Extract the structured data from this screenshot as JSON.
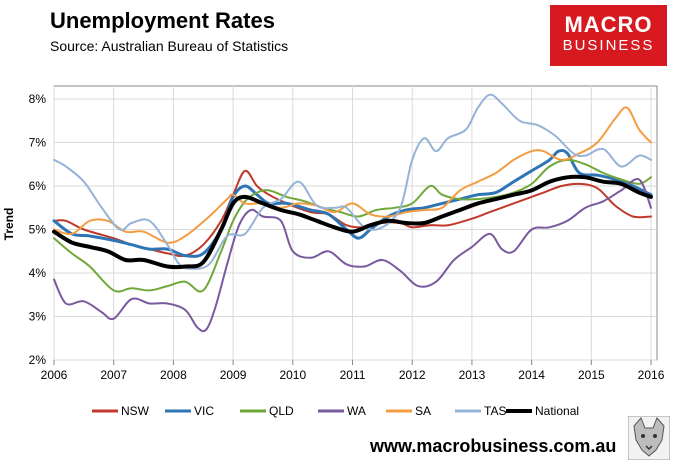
{
  "title": "Unemployment Rates",
  "subtitle": "Source: Australian Bureau of Statistics",
  "logo": {
    "line1": "MACRO",
    "line2": "BUSINESS"
  },
  "footer": {
    "url": "www.macrobusiness.com.au"
  },
  "chart_data": {
    "type": "line",
    "title": "Unemployment Rates",
    "xlabel": "",
    "ylabel": "Trend",
    "xlim": [
      2006,
      2016.1
    ],
    "ylim": [
      2,
      8.3
    ],
    "yticks": [
      2,
      3,
      4,
      5,
      6,
      7,
      8
    ],
    "ytick_labels": [
      "2%",
      "3%",
      "4%",
      "5%",
      "6%",
      "7%",
      "8%"
    ],
    "xticks": [
      2006,
      2007,
      2008,
      2009,
      2010,
      2011,
      2012,
      2013,
      2014,
      2015,
      2016
    ],
    "xtick_labels": [
      "2006",
      "2007",
      "2008",
      "2009",
      "2010",
      "2011",
      "2012",
      "2013",
      "2014",
      "2015",
      "2016"
    ],
    "grid": true,
    "legend_position": "bottom",
    "series": [
      {
        "name": "NSW",
        "color": "#c0392b",
        "width": 2,
        "x": [
          2006,
          2006.2,
          2006.5,
          2007,
          2007.3,
          2007.6,
          2007.9,
          2008.2,
          2008.5,
          2008.8,
          2009,
          2009.2,
          2009.4,
          2009.6,
          2009.9,
          2010.3,
          2010.6,
          2010.9,
          2011.2,
          2011.5,
          2011.8,
          2012,
          2012.3,
          2012.6,
          2013,
          2013.3,
          2013.6,
          2013.9,
          2014.2,
          2014.5,
          2014.8,
          2015.1,
          2015.4,
          2015.7,
          2016
        ],
        "y": [
          5.2,
          5.2,
          5.0,
          4.8,
          4.65,
          4.55,
          4.45,
          4.4,
          4.65,
          5.2,
          5.8,
          6.35,
          6.0,
          5.8,
          5.6,
          5.4,
          5.35,
          5.1,
          5.05,
          5.15,
          5.15,
          5.05,
          5.1,
          5.1,
          5.25,
          5.4,
          5.55,
          5.7,
          5.85,
          6.0,
          6.05,
          5.95,
          5.55,
          5.3,
          5.3
        ]
      },
      {
        "name": "VIC",
        "color": "#2e75b6",
        "width": 3,
        "x": [
          2006,
          2006.3,
          2006.6,
          2007,
          2007.3,
          2007.6,
          2007.9,
          2008.2,
          2008.5,
          2008.8,
          2009,
          2009.2,
          2009.4,
          2009.6,
          2009.9,
          2010.3,
          2010.6,
          2010.9,
          2011.1,
          2011.3,
          2011.6,
          2011.9,
          2012.2,
          2012.5,
          2012.8,
          2013.1,
          2013.4,
          2013.7,
          2014,
          2014.3,
          2014.45,
          2014.6,
          2014.8,
          2015.1,
          2015.4,
          2015.7,
          2016
        ],
        "y": [
          5.2,
          4.9,
          4.85,
          4.75,
          4.65,
          4.55,
          4.55,
          4.4,
          4.45,
          5.0,
          5.75,
          6.0,
          5.8,
          5.6,
          5.6,
          5.45,
          5.35,
          5.0,
          4.8,
          5.0,
          5.3,
          5.45,
          5.5,
          5.6,
          5.7,
          5.8,
          5.85,
          6.1,
          6.35,
          6.6,
          6.8,
          6.75,
          6.3,
          6.25,
          6.15,
          6.0,
          5.8
        ]
      },
      {
        "name": "QLD",
        "color": "#70a83a",
        "width": 2,
        "x": [
          2006,
          2006.3,
          2006.6,
          2007,
          2007.3,
          2007.6,
          2007.9,
          2008.2,
          2008.5,
          2008.8,
          2009,
          2009.2,
          2009.4,
          2009.6,
          2009.9,
          2010.2,
          2010.5,
          2010.8,
          2011.1,
          2011.4,
          2011.7,
          2012,
          2012.3,
          2012.5,
          2012.8,
          2013.1,
          2013.4,
          2013.7,
          2014,
          2014.3,
          2014.6,
          2014.9,
          2015.2,
          2015.5,
          2015.8,
          2016
        ],
        "y": [
          4.8,
          4.45,
          4.15,
          3.6,
          3.65,
          3.6,
          3.7,
          3.8,
          3.6,
          4.5,
          5.2,
          5.65,
          5.85,
          5.9,
          5.75,
          5.65,
          5.5,
          5.4,
          5.3,
          5.45,
          5.5,
          5.6,
          6.0,
          5.8,
          5.7,
          5.7,
          5.75,
          5.85,
          6.05,
          6.45,
          6.6,
          6.5,
          6.3,
          6.15,
          6.05,
          6.2
        ]
      },
      {
        "name": "WA",
        "color": "#7a5a9f",
        "width": 2,
        "x": [
          2006,
          2006.2,
          2006.5,
          2006.8,
          2007,
          2007.3,
          2007.6,
          2007.9,
          2008.2,
          2008.4,
          2008.55,
          2008.7,
          2008.9,
          2009.1,
          2009.3,
          2009.5,
          2009.8,
          2010,
          2010.3,
          2010.6,
          2010.9,
          2011.2,
          2011.5,
          2011.8,
          2012.1,
          2012.4,
          2012.7,
          2013,
          2013.3,
          2013.5,
          2013.7,
          2014,
          2014.3,
          2014.6,
          2014.9,
          2015.2,
          2015.5,
          2015.8,
          2016
        ],
        "y": [
          3.85,
          3.3,
          3.35,
          3.1,
          2.95,
          3.4,
          3.3,
          3.3,
          3.15,
          2.75,
          2.7,
          3.2,
          4.2,
          5.1,
          5.45,
          5.3,
          5.2,
          4.5,
          4.35,
          4.5,
          4.2,
          4.15,
          4.3,
          4.05,
          3.7,
          3.8,
          4.3,
          4.6,
          4.9,
          4.55,
          4.5,
          5.0,
          5.05,
          5.2,
          5.5,
          5.65,
          5.9,
          6.15,
          5.5
        ]
      },
      {
        "name": "SA",
        "color": "#f39c42",
        "width": 2,
        "x": [
          2006,
          2006.3,
          2006.6,
          2006.9,
          2007.2,
          2007.5,
          2007.9,
          2008.2,
          2008.6,
          2008.9,
          2009,
          2009.2,
          2009.5,
          2009.8,
          2010.1,
          2010.4,
          2010.7,
          2011,
          2011.3,
          2011.6,
          2011.9,
          2012.2,
          2012.5,
          2012.8,
          2013.1,
          2013.4,
          2013.7,
          2014,
          2014.2,
          2014.5,
          2014.8,
          2015.1,
          2015.4,
          2015.6,
          2015.8,
          2016
        ],
        "y": [
          5.0,
          4.9,
          5.2,
          5.2,
          4.95,
          4.95,
          4.7,
          4.85,
          5.3,
          5.7,
          5.8,
          5.6,
          5.6,
          5.5,
          5.6,
          5.55,
          5.4,
          5.6,
          5.35,
          5.3,
          5.4,
          5.45,
          5.5,
          5.9,
          6.1,
          6.3,
          6.6,
          6.8,
          6.8,
          6.6,
          6.75,
          7.0,
          7.55,
          7.8,
          7.3,
          7.0
        ]
      },
      {
        "name": "TAS",
        "color": "#95b3d7",
        "width": 2,
        "x": [
          2006,
          2006.2,
          2006.5,
          2006.8,
          2007.1,
          2007.3,
          2007.6,
          2007.9,
          2008.1,
          2008.3,
          2008.6,
          2008.9,
          2009.2,
          2009.5,
          2009.8,
          2010.1,
          2010.4,
          2010.7,
          2010.9,
          2011.2,
          2011.5,
          2011.8,
          2012,
          2012.2,
          2012.4,
          2012.6,
          2012.9,
          2013.1,
          2013.3,
          2013.5,
          2013.8,
          2014.1,
          2014.4,
          2014.7,
          2014.9,
          2015.2,
          2015.5,
          2015.8,
          2016
        ],
        "y": [
          6.6,
          6.45,
          6.1,
          5.5,
          5.0,
          5.15,
          5.2,
          4.65,
          4.2,
          4.1,
          4.2,
          4.85,
          4.9,
          5.5,
          5.7,
          6.1,
          5.55,
          5.5,
          5.5,
          5.05,
          5.05,
          5.5,
          6.6,
          7.1,
          6.8,
          7.1,
          7.3,
          7.8,
          8.1,
          7.9,
          7.5,
          7.4,
          7.15,
          6.75,
          6.7,
          6.85,
          6.45,
          6.7,
          6.6
        ]
      },
      {
        "name": "National",
        "color": "#000000",
        "width": 4,
        "x": [
          2006,
          2006.3,
          2006.6,
          2006.9,
          2007.2,
          2007.5,
          2007.9,
          2008.2,
          2008.5,
          2008.8,
          2009,
          2009.2,
          2009.5,
          2009.8,
          2010.1,
          2010.4,
          2010.7,
          2011,
          2011.3,
          2011.6,
          2011.9,
          2012.2,
          2012.5,
          2012.8,
          2013.1,
          2013.4,
          2013.7,
          2014,
          2014.3,
          2014.6,
          2014.9,
          2015.2,
          2015.5,
          2015.8,
          2016
        ],
        "y": [
          4.95,
          4.7,
          4.6,
          4.5,
          4.3,
          4.3,
          4.15,
          4.15,
          4.25,
          5.0,
          5.6,
          5.75,
          5.6,
          5.45,
          5.35,
          5.2,
          5.05,
          4.95,
          5.1,
          5.2,
          5.15,
          5.15,
          5.3,
          5.45,
          5.6,
          5.7,
          5.8,
          5.9,
          6.1,
          6.2,
          6.2,
          6.1,
          6.05,
          5.85,
          5.75
        ]
      }
    ]
  }
}
